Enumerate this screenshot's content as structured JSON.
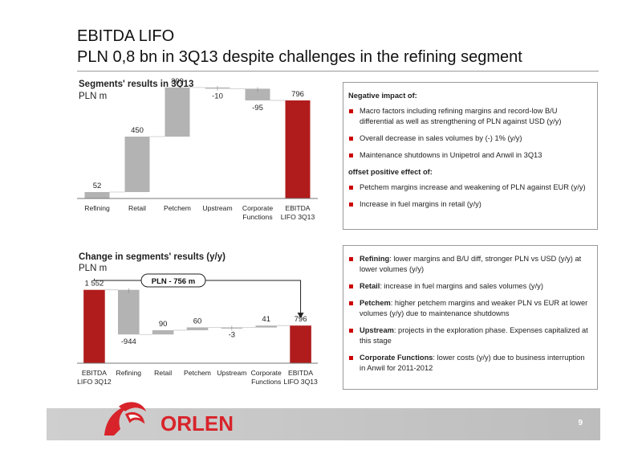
{
  "slide": {
    "title_line1": "EBITDA LIFO",
    "title_line2": "PLN 0,8 bn in 3Q13 despite challenges in the refining segment",
    "page_number": "9",
    "logo_text": "ORLEN"
  },
  "colors": {
    "accent_red": "#B01C1C",
    "bar_grey": "#B3B3B3",
    "brand_red": "#D8232A",
    "footer_grey": "#C8C8C8"
  },
  "chart_data": [
    {
      "type": "bar",
      "subtype": "waterfall",
      "title": "Segments' results in 3Q13",
      "subtitle": "PLN m",
      "categories": [
        "Refining",
        "Retail",
        "Petchem",
        "Upstream",
        "Corporate Functions",
        "EBITDA LIFO 3Q13"
      ],
      "values": [
        52,
        450,
        399,
        -10,
        -95,
        796
      ],
      "value_labels": [
        "52",
        "450",
        "399",
        "-10",
        "-95",
        "796"
      ],
      "total_index": 5,
      "ylim": [
        0,
        900
      ]
    },
    {
      "type": "bar",
      "subtype": "waterfall",
      "title": "Change in segments' results (y/y)",
      "subtitle": "PLN m",
      "categories": [
        "EBITDA LIFO 3Q12",
        "Refining",
        "Retail",
        "Petchem",
        "Upstream",
        "Corporate Functions",
        "EBITDA LIFO 3Q13"
      ],
      "values": [
        1552,
        -944,
        90,
        60,
        -3,
        41,
        796
      ],
      "value_labels": [
        "1 552",
        "-944",
        "90",
        "60",
        "-3",
        "41",
        "796"
      ],
      "total_indices": [
        0,
        6
      ],
      "ylim": [
        0,
        1700
      ],
      "annotation": "PLN - 756 m"
    }
  ],
  "box1": {
    "heading1": "Negative impact of:",
    "items1": [
      "Macro factors including refining margins and record-low B/U differential as well as strengthening of PLN against USD (y/y)",
      "Overall decrease in sales volumes by (-) 1% (y/y)",
      "Maintenance shutdowns in Unipetrol and Anwil in 3Q13"
    ],
    "heading2": "offset positive effect of:",
    "items2": [
      "Petchem margins increase and weakening of PLN against EUR (y/y)",
      "Increase in fuel margins in retail (y/y)"
    ]
  },
  "box2": {
    "items": [
      {
        "name": "Refining",
        "text": ": lower margins and B/U diff, stronger PLN vs USD (y/y) at lower volumes (y/y)"
      },
      {
        "name": "Retail",
        "text": ": increase in fuel margins and sales volumes (y/y)"
      },
      {
        "name": "Petchem",
        "text": ": higher petchem margins and weaker PLN vs EUR at lower volumes (y/y) due to maintenance shutdowns"
      },
      {
        "name": "Upstream",
        "text": ": projects in the exploration phase. Expenses capitalized at this stage"
      },
      {
        "name": "Corporate Functions",
        "text": ": lower costs (y/y) due to business interruption in Anwil for 2011-2012"
      }
    ]
  }
}
